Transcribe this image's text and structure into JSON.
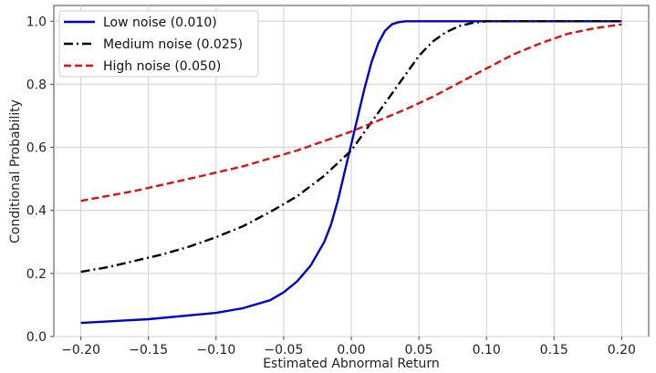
{
  "chart_data": {
    "type": "line",
    "xlabel": "Estimated Abnormal Return",
    "ylabel": "Conditional Probability",
    "xlim": [
      -0.22,
      0.22
    ],
    "ylim": [
      0.0,
      1.05
    ],
    "xticks": [
      -0.2,
      -0.15,
      -0.1,
      -0.05,
      0.0,
      0.05,
      0.1,
      0.15,
      0.2
    ],
    "xtick_labels": [
      "−0.20",
      "−0.15",
      "−0.10",
      "−0.05",
      "0.00",
      "0.05",
      "0.10",
      "0.15",
      "0.20"
    ],
    "yticks": [
      0.0,
      0.2,
      0.4,
      0.6,
      0.8,
      1.0
    ],
    "ytick_labels": [
      "0.0",
      "0.2",
      "0.4",
      "0.6",
      "0.8",
      "1.0"
    ],
    "grid": true,
    "legend_position": "top-left",
    "series": [
      {
        "name": "Low noise (0.010)",
        "color": "#0000cc",
        "style": "solid",
        "x": [
          -0.2,
          -0.15,
          -0.1,
          -0.08,
          -0.06,
          -0.05,
          -0.04,
          -0.03,
          -0.02,
          -0.015,
          -0.01,
          -0.005,
          0.0,
          0.005,
          0.01,
          0.015,
          0.02,
          0.025,
          0.03,
          0.035,
          0.04,
          0.05,
          0.06,
          0.1,
          0.15,
          0.2
        ],
        "values": [
          0.043,
          0.055,
          0.075,
          0.09,
          0.115,
          0.14,
          0.175,
          0.225,
          0.3,
          0.355,
          0.43,
          0.52,
          0.61,
          0.7,
          0.79,
          0.87,
          0.93,
          0.97,
          0.99,
          0.997,
          1.0,
          1.0,
          1.0,
          1.0,
          1.0,
          1.0
        ]
      },
      {
        "name": "Medium noise (0.025)",
        "color": "#000000",
        "style": "dashdot",
        "x": [
          -0.2,
          -0.18,
          -0.16,
          -0.14,
          -0.12,
          -0.1,
          -0.08,
          -0.06,
          -0.04,
          -0.02,
          0.0,
          0.01,
          0.02,
          0.03,
          0.04,
          0.05,
          0.06,
          0.07,
          0.08,
          0.09,
          0.1,
          0.12,
          0.15,
          0.2
        ],
        "values": [
          0.205,
          0.22,
          0.24,
          0.26,
          0.285,
          0.315,
          0.35,
          0.395,
          0.445,
          0.51,
          0.59,
          0.65,
          0.71,
          0.77,
          0.83,
          0.89,
          0.935,
          0.965,
          0.985,
          0.995,
          1.0,
          1.0,
          1.0,
          1.0
        ]
      },
      {
        "name": "High noise (0.050)",
        "color": "#dd1111",
        "style": "dashed",
        "x": [
          -0.2,
          -0.16,
          -0.12,
          -0.08,
          -0.04,
          0.0,
          0.02,
          0.04,
          0.06,
          0.08,
          0.1,
          0.12,
          0.14,
          0.16,
          0.18,
          0.2
        ],
        "values": [
          0.43,
          0.462,
          0.5,
          0.54,
          0.59,
          0.65,
          0.685,
          0.72,
          0.76,
          0.805,
          0.85,
          0.895,
          0.93,
          0.96,
          0.978,
          0.99
        ]
      }
    ]
  }
}
